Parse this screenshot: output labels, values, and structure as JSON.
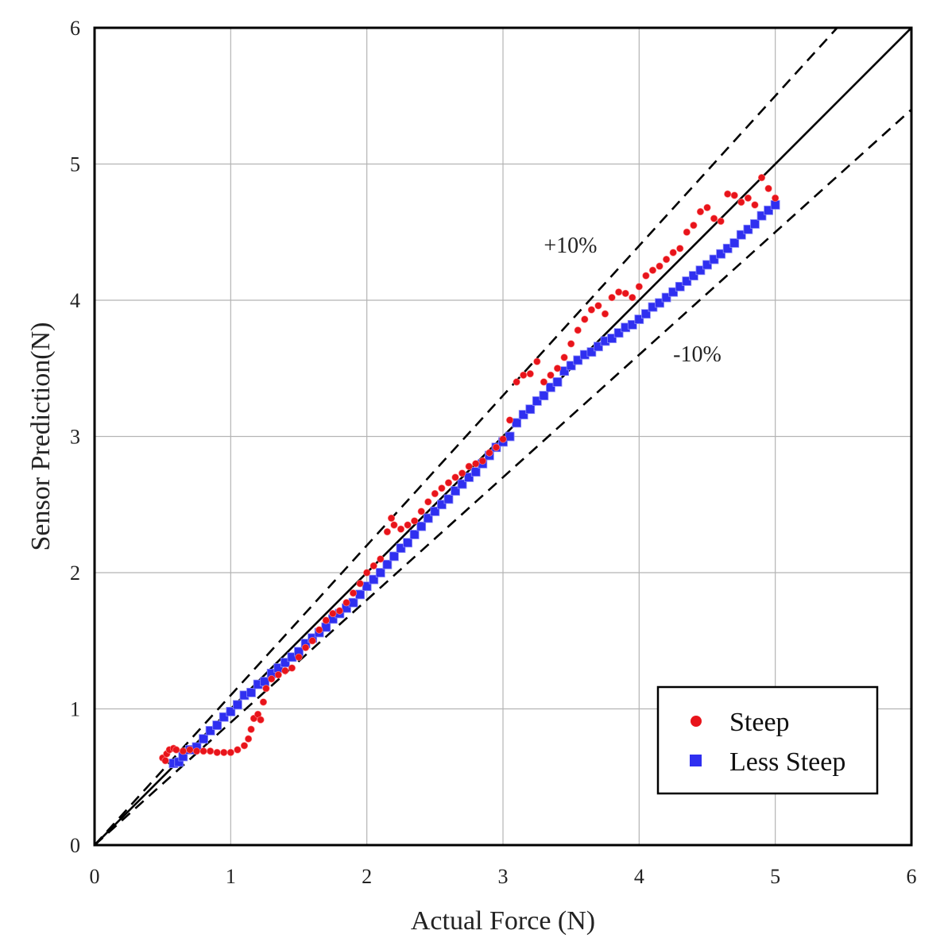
{
  "chart_data": {
    "type": "scatter",
    "title": "",
    "xlabel": "Actual Force (N)",
    "ylabel": "Sensor Prediction(N)",
    "xlim": [
      0,
      6
    ],
    "ylim": [
      0,
      6
    ],
    "xticks": [
      "0",
      "1",
      "2",
      "3",
      "4",
      "5",
      "6"
    ],
    "yticks": [
      "0",
      "1",
      "2",
      "3",
      "4",
      "5",
      "6"
    ],
    "grid": true,
    "legend_position": "bottom-right",
    "reference_lines": [
      {
        "name": "ideal",
        "slope": 1.0,
        "style": "solid"
      },
      {
        "name": "+10%",
        "slope": 1.1,
        "style": "dashed",
        "label": "+10%"
      },
      {
        "name": "-10%",
        "slope": 0.9,
        "style": "dashed",
        "label": "-10%"
      }
    ],
    "series": [
      {
        "name": "Steep",
        "marker": "circle",
        "color": "#e8141b",
        "points": [
          [
            0.5,
            0.64
          ],
          [
            0.52,
            0.62
          ],
          [
            0.53,
            0.67
          ],
          [
            0.55,
            0.7
          ],
          [
            0.58,
            0.71
          ],
          [
            0.6,
            0.7
          ],
          [
            0.65,
            0.69
          ],
          [
            0.7,
            0.7
          ],
          [
            0.75,
            0.69
          ],
          [
            0.8,
            0.69
          ],
          [
            0.85,
            0.69
          ],
          [
            0.9,
            0.68
          ],
          [
            0.95,
            0.68
          ],
          [
            1.0,
            0.68
          ],
          [
            1.05,
            0.7
          ],
          [
            1.1,
            0.73
          ],
          [
            1.13,
            0.78
          ],
          [
            1.15,
            0.85
          ],
          [
            1.17,
            0.93
          ],
          [
            1.2,
            0.96
          ],
          [
            1.22,
            0.92
          ],
          [
            1.24,
            1.05
          ],
          [
            1.26,
            1.15
          ],
          [
            1.3,
            1.22
          ],
          [
            1.35,
            1.25
          ],
          [
            1.4,
            1.28
          ],
          [
            1.45,
            1.3
          ],
          [
            1.5,
            1.38
          ],
          [
            1.55,
            1.45
          ],
          [
            1.6,
            1.5
          ],
          [
            1.65,
            1.58
          ],
          [
            1.7,
            1.65
          ],
          [
            1.75,
            1.7
          ],
          [
            1.8,
            1.72
          ],
          [
            1.85,
            1.78
          ],
          [
            1.9,
            1.85
          ],
          [
            1.95,
            1.92
          ],
          [
            2.0,
            2.0
          ],
          [
            2.05,
            2.05
          ],
          [
            2.1,
            2.1
          ],
          [
            2.15,
            2.3
          ],
          [
            2.18,
            2.4
          ],
          [
            2.2,
            2.35
          ],
          [
            2.25,
            2.32
          ],
          [
            2.3,
            2.35
          ],
          [
            2.35,
            2.38
          ],
          [
            2.4,
            2.45
          ],
          [
            2.45,
            2.52
          ],
          [
            2.5,
            2.58
          ],
          [
            2.55,
            2.62
          ],
          [
            2.6,
            2.66
          ],
          [
            2.65,
            2.7
          ],
          [
            2.7,
            2.73
          ],
          [
            2.75,
            2.78
          ],
          [
            2.8,
            2.8
          ],
          [
            2.85,
            2.82
          ],
          [
            2.9,
            2.88
          ],
          [
            2.95,
            2.92
          ],
          [
            3.0,
            2.98
          ],
          [
            3.05,
            3.12
          ],
          [
            3.1,
            3.4
          ],
          [
            3.15,
            3.45
          ],
          [
            3.2,
            3.46
          ],
          [
            3.25,
            3.55
          ],
          [
            3.3,
            3.4
          ],
          [
            3.35,
            3.45
          ],
          [
            3.4,
            3.5
          ],
          [
            3.45,
            3.58
          ],
          [
            3.5,
            3.68
          ],
          [
            3.55,
            3.78
          ],
          [
            3.6,
            3.86
          ],
          [
            3.65,
            3.93
          ],
          [
            3.7,
            3.96
          ],
          [
            3.75,
            3.9
          ],
          [
            3.8,
            4.02
          ],
          [
            3.85,
            4.06
          ],
          [
            3.9,
            4.05
          ],
          [
            3.95,
            4.02
          ],
          [
            4.0,
            4.1
          ],
          [
            4.05,
            4.18
          ],
          [
            4.1,
            4.22
          ],
          [
            4.15,
            4.25
          ],
          [
            4.2,
            4.3
          ],
          [
            4.25,
            4.35
          ],
          [
            4.3,
            4.38
          ],
          [
            4.35,
            4.5
          ],
          [
            4.4,
            4.55
          ],
          [
            4.45,
            4.65
          ],
          [
            4.5,
            4.68
          ],
          [
            4.55,
            4.6
          ],
          [
            4.6,
            4.58
          ],
          [
            4.65,
            4.78
          ],
          [
            4.7,
            4.77
          ],
          [
            4.75,
            4.72
          ],
          [
            4.8,
            4.75
          ],
          [
            4.85,
            4.7
          ],
          [
            4.9,
            4.9
          ],
          [
            4.95,
            4.82
          ],
          [
            5.0,
            4.75
          ]
        ]
      },
      {
        "name": "Less Steep",
        "marker": "square",
        "color": "#2f2ff0",
        "points": [
          [
            0.58,
            0.6
          ],
          [
            0.62,
            0.61
          ],
          [
            0.65,
            0.65
          ],
          [
            0.7,
            0.7
          ],
          [
            0.75,
            0.72
          ],
          [
            0.8,
            0.78
          ],
          [
            0.85,
            0.84
          ],
          [
            0.9,
            0.88
          ],
          [
            0.95,
            0.94
          ],
          [
            1.0,
            0.98
          ],
          [
            1.05,
            1.03
          ],
          [
            1.1,
            1.1
          ],
          [
            1.15,
            1.12
          ],
          [
            1.2,
            1.18
          ],
          [
            1.25,
            1.2
          ],
          [
            1.3,
            1.26
          ],
          [
            1.35,
            1.3
          ],
          [
            1.4,
            1.34
          ],
          [
            1.45,
            1.38
          ],
          [
            1.5,
            1.42
          ],
          [
            1.55,
            1.48
          ],
          [
            1.6,
            1.52
          ],
          [
            1.65,
            1.56
          ],
          [
            1.7,
            1.6
          ],
          [
            1.75,
            1.66
          ],
          [
            1.8,
            1.7
          ],
          [
            1.85,
            1.74
          ],
          [
            1.9,
            1.78
          ],
          [
            1.95,
            1.84
          ],
          [
            2.0,
            1.9
          ],
          [
            2.05,
            1.95
          ],
          [
            2.1,
            2.0
          ],
          [
            2.15,
            2.06
          ],
          [
            2.2,
            2.12
          ],
          [
            2.25,
            2.18
          ],
          [
            2.3,
            2.22
          ],
          [
            2.35,
            2.28
          ],
          [
            2.4,
            2.34
          ],
          [
            2.45,
            2.4
          ],
          [
            2.5,
            2.45
          ],
          [
            2.55,
            2.5
          ],
          [
            2.6,
            2.54
          ],
          [
            2.65,
            2.6
          ],
          [
            2.7,
            2.65
          ],
          [
            2.75,
            2.7
          ],
          [
            2.8,
            2.74
          ],
          [
            2.85,
            2.8
          ],
          [
            2.9,
            2.86
          ],
          [
            2.95,
            2.92
          ],
          [
            3.0,
            2.96
          ],
          [
            3.05,
            3.0
          ],
          [
            3.1,
            3.1
          ],
          [
            3.15,
            3.16
          ],
          [
            3.2,
            3.2
          ],
          [
            3.25,
            3.26
          ],
          [
            3.3,
            3.3
          ],
          [
            3.35,
            3.36
          ],
          [
            3.4,
            3.4
          ],
          [
            3.45,
            3.48
          ],
          [
            3.5,
            3.52
          ],
          [
            3.55,
            3.56
          ],
          [
            3.6,
            3.6
          ],
          [
            3.65,
            3.62
          ],
          [
            3.7,
            3.66
          ],
          [
            3.75,
            3.7
          ],
          [
            3.8,
            3.72
          ],
          [
            3.85,
            3.76
          ],
          [
            3.9,
            3.8
          ],
          [
            3.95,
            3.82
          ],
          [
            4.0,
            3.86
          ],
          [
            4.05,
            3.9
          ],
          [
            4.1,
            3.95
          ],
          [
            4.15,
            3.98
          ],
          [
            4.2,
            4.02
          ],
          [
            4.25,
            4.06
          ],
          [
            4.3,
            4.1
          ],
          [
            4.35,
            4.14
          ],
          [
            4.4,
            4.18
          ],
          [
            4.45,
            4.22
          ],
          [
            4.5,
            4.26
          ],
          [
            4.55,
            4.3
          ],
          [
            4.6,
            4.34
          ],
          [
            4.65,
            4.38
          ],
          [
            4.7,
            4.42
          ],
          [
            4.75,
            4.48
          ],
          [
            4.8,
            4.52
          ],
          [
            4.85,
            4.56
          ],
          [
            4.9,
            4.62
          ],
          [
            4.95,
            4.66
          ],
          [
            5.0,
            4.7
          ]
        ]
      }
    ]
  }
}
